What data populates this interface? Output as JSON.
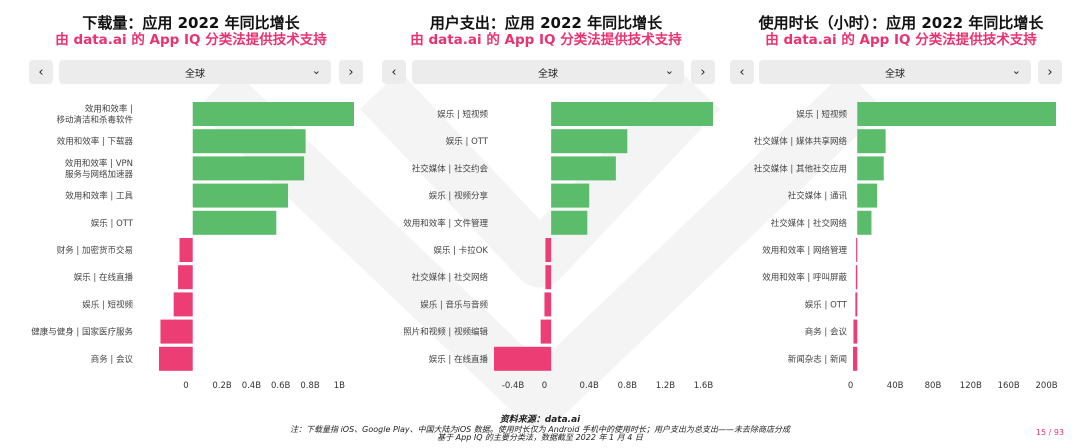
{
  "footer": {
    "source": "资料来源：data.ai",
    "note": "注：下载量指 iOS、Google Play、中国大陆为iOS 数据。使用时长仅为 Android 手机中的使用时长；用户支出为总支出——未去除商店分成",
    "note2": "基于 App IQ 的主要分类法，数据截至 2022 年 1 月 4 日",
    "page": "15 / 93"
  },
  "colors": {
    "positive": "#5bbd6b",
    "negative": "#ec3d74",
    "accent": "#e8336f"
  },
  "panels": [
    {
      "title": "下载量：应用 2022 年同比增长",
      "subtitle": "由 data.ai 的 App IQ 分类法提供技术支持",
      "prev_icon": "‹",
      "next_icon": "›",
      "dropdown": "全球"
    },
    {
      "title": "用户支出：应用 2022 年同比增长",
      "subtitle": "由 data.ai 的 App IQ 分类法提供技术支持",
      "prev_icon": "‹",
      "next_icon": "›",
      "dropdown": "全球"
    },
    {
      "title": "使用时长（小时）：应用 2022 年同比增长",
      "subtitle": "由 data.ai 的 App IQ 分类法提供技术支持",
      "prev_icon": "‹",
      "next_icon": "›",
      "dropdown": "全球"
    }
  ],
  "chart_data": [
    {
      "type": "bar",
      "orientation": "horizontal",
      "title": "下载量：应用 2022 年同比增长",
      "categories": [
        "效用和效率 |\n移动清洁和杀毒软件",
        "效用和效率 | 下载器",
        "效用和效率 | VPN\n服务与网络加速器",
        "效用和效率 | 工具",
        "娱乐 | OTT",
        "财务 | 加密货币交易",
        "娱乐 | 在线直播",
        "娱乐 | 短视频",
        "健康与健身 | 国家医疗服务",
        "商务 | 会议"
      ],
      "values": [
        1.1,
        0.77,
        0.76,
        0.65,
        0.57,
        -0.09,
        -0.1,
        -0.13,
        -0.22,
        -0.23
      ],
      "ticks": [
        0,
        0.2,
        0.4,
        0.6,
        0.8,
        1.0
      ],
      "tick_labels": [
        "0",
        "0.2B",
        "0.4B",
        "0.6B",
        "0.8B",
        "1B"
      ],
      "xlim": [
        -0.23,
        1.1
      ]
    },
    {
      "type": "bar",
      "orientation": "horizontal",
      "title": "用户支出：应用 2022 年同比增长",
      "categories": [
        "娱乐 | 短视频",
        "娱乐 | OTT",
        "社交媒体 | 社交约会",
        "娱乐 | 视频分享",
        "效用和效率 | 文件管理",
        "娱乐 | 卡拉OK",
        "社交媒体 | 社交网络",
        "娱乐 | 音乐与音频",
        "照片和视频 | 视频编辑",
        "娱乐 | 在线直播"
      ],
      "values": [
        1.7,
        0.8,
        0.68,
        0.4,
        0.38,
        -0.06,
        -0.06,
        -0.07,
        -0.11,
        -0.6
      ],
      "ticks": [
        -0.4,
        0,
        0.4,
        0.8,
        1.2,
        1.6
      ],
      "tick_labels": [
        "-0.4B",
        "0",
        "0.4B",
        "0.8B",
        "1.2B",
        "1.6B"
      ],
      "xlim": [
        -0.6,
        1.7
      ]
    },
    {
      "type": "bar",
      "orientation": "horizontal",
      "title": "使用时长（小时）：应用 2022 年同比增长",
      "categories": [
        "娱乐 | 短视频",
        "社交媒体 | 媒体共享网络",
        "社交媒体 | 其他社交应用",
        "社交媒体 | 通讯",
        "社交媒体 | 社交网络",
        "效用和效率 | 网络管理",
        "效用和效率 | 呼叫屏蔽",
        "娱乐 | OTT",
        "商务 | 会议",
        "新闻杂志 | 新闻"
      ],
      "values": [
        210,
        30,
        28,
        21,
        15,
        -1.2,
        -1.5,
        -2,
        -4,
        -4.5
      ],
      "ticks": [
        0,
        40,
        80,
        120,
        160,
        200
      ],
      "tick_labels": [
        "0",
        "40B",
        "80B",
        "120B",
        "160B",
        "200B"
      ],
      "xlim": [
        -4.5,
        210
      ]
    }
  ]
}
